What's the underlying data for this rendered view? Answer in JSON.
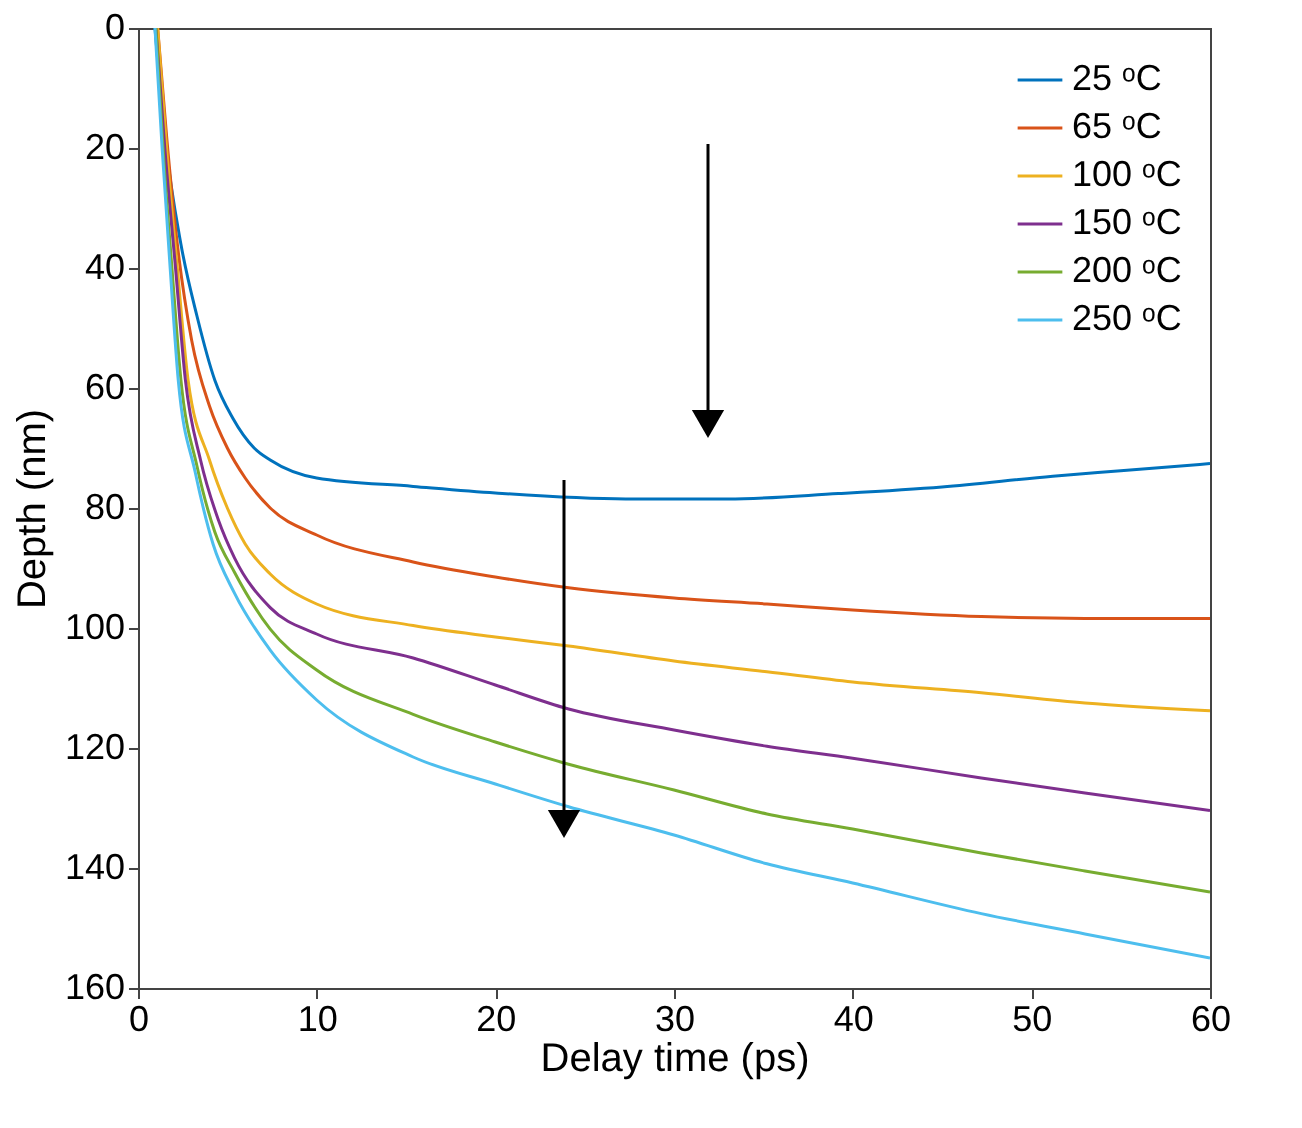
{
  "chart_data": {
    "type": "line",
    "xlabel": "Delay time (ps)",
    "ylabel": "Depth (nm)",
    "xlim": [
      0,
      60
    ],
    "xticks": [
      0,
      10,
      20,
      30,
      40,
      50,
      60
    ],
    "ylim": [
      160,
      0
    ],
    "yticks": [
      0,
      20,
      40,
      60,
      80,
      100,
      120,
      140,
      160
    ],
    "grid": false,
    "legend": "top right",
    "marker": "none",
    "line_style": "solid",
    "series": [
      {
        "name": "25 ᵒC",
        "color": "#0072bd",
        "x": [
          0.95,
          1.5,
          2.4,
          3.3,
          4.3,
          5.3,
          6.5,
          7.4,
          10,
          15.4,
          20,
          27.3,
          33,
          39.2,
          45,
          51.2,
          55,
          60
        ],
        "values": [
          0,
          18,
          36,
          48,
          58.7,
          65,
          70,
          72,
          75,
          76.4,
          77.5,
          78.5,
          78.5,
          77.6,
          76.5,
          74.7,
          73.8,
          72.6
        ]
      },
      {
        "name": "65 ᵒC",
        "color": "#d95319",
        "x": [
          1.1,
          1.6,
          2.2,
          3.0,
          4.0,
          5.0,
          6.0,
          7.4,
          10,
          15.4,
          20,
          24.1,
          30,
          35.2,
          40,
          47.2,
          53,
          60
        ],
        "values": [
          0,
          18,
          36,
          52,
          63,
          70,
          75,
          80,
          84.5,
          89,
          91.5,
          93.3,
          95,
          96,
          97,
          98.1,
          98.4,
          98.4
        ]
      },
      {
        "name": "100 ᵒC",
        "color": "#edb120",
        "x": [
          1.1,
          1.6,
          2.2,
          2.8,
          4,
          5,
          6,
          7.4,
          10,
          15.4,
          20,
          24.1,
          30,
          35.2,
          40,
          47.2,
          53,
          60
        ],
        "values": [
          0,
          20,
          40,
          58.6,
          72,
          80,
          86,
          91,
          96,
          99.6,
          101.5,
          103,
          105.5,
          107.3,
          109,
          110.8,
          112.5,
          113.8
        ]
      },
      {
        "name": "150 ᵒC",
        "color": "#7e2f8e",
        "x": [
          1.0,
          1.5,
          2.1,
          2.65,
          3.5,
          4.5,
          5.4,
          7.4,
          10,
          15.4,
          20,
          24.1,
          30,
          35.2,
          40,
          47.2,
          53,
          60
        ],
        "values": [
          0,
          20,
          40,
          58.6,
          72,
          82,
          88.3,
          96.6,
          101,
          105,
          109.5,
          113.5,
          117,
          119.7,
          121.7,
          125,
          127.5,
          130.4
        ]
      },
      {
        "name": "200 ᵒC",
        "color": "#77ac30",
        "x": [
          1.0,
          1.4,
          1.9,
          2.4,
          3.3,
          4.3,
          5.4,
          7.4,
          10,
          15.4,
          20,
          24.1,
          30,
          35.2,
          40,
          47.2,
          53,
          60
        ],
        "values": [
          0,
          20,
          40,
          58.6,
          73,
          84,
          90.7,
          100.2,
          107,
          114.4,
          119,
          122.7,
          127,
          131,
          133.5,
          137.5,
          140.5,
          144
        ]
      },
      {
        "name": "250 ᵒC",
        "color": "#4dbeee",
        "x": [
          0.95,
          1.35,
          1.8,
          2.25,
          3.2,
          4.2,
          5.4,
          7.4,
          10,
          15.4,
          20,
          24.1,
          30,
          35.2,
          40,
          47.2,
          53,
          60
        ],
        "values": [
          0,
          20,
          40,
          58.6,
          74,
          86,
          94.2,
          103.7,
          112,
          121.5,
          126,
          129.8,
          134.5,
          139.3,
          142.5,
          147.6,
          151,
          155
        ]
      }
    ]
  }
}
